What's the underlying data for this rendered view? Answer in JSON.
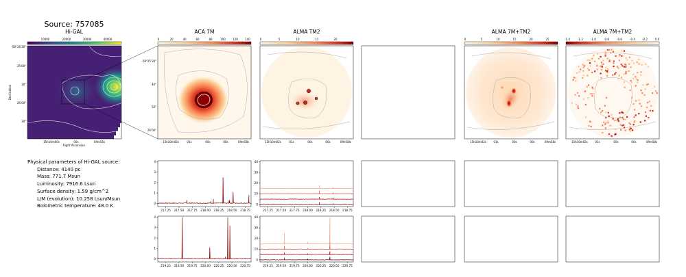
{
  "source_title": "Source: 757085",
  "panels": {
    "higal": {
      "title": "Hi-GAL",
      "colorbar_ticks": [
        "10000",
        "20000",
        "30000",
        "40000"
      ],
      "xlabel": "Right Ascension",
      "ylabel": "Declination",
      "yticks": [
        "-58°24'30\"",
        "25'00\"",
        "30\"",
        "26'00\"",
        "30\""
      ],
      "xticks": [
        "15h10m00s",
        "00s",
        "09m55s"
      ]
    },
    "aca7m": {
      "title": "ACA 7M",
      "colorbar_ticks": [
        "0",
        "20",
        "40",
        "60",
        "80",
        "100",
        "120",
        "140"
      ],
      "yticks": [
        "-58°25'30\"",
        "40\"",
        "50\"",
        "26'00\""
      ],
      "xticks": [
        "15h10m02s",
        "01s",
        "00s",
        "00s",
        "09m58s"
      ]
    },
    "almatm2": {
      "title": "ALMA TM2",
      "colorbar_ticks": [
        "0",
        "5",
        "10",
        "15",
        "20"
      ],
      "xticks": [
        "15h10m02s",
        "01s",
        "00s",
        "00s",
        "09m58s"
      ]
    },
    "alma7mtm2": {
      "title": "ALMA 7M+TM2",
      "colorbar_ticks": [
        "0",
        "5",
        "10",
        "15",
        "20",
        "25"
      ],
      "xticks": [
        "15h10m02s",
        "01s",
        "00s",
        "00s",
        "09m58s"
      ]
    },
    "alma7mtm2_neg": {
      "title": "ALMA 7M+TM2",
      "colorbar_ticks": [
        "-1.4",
        "-1.2",
        "-1.0",
        "-0.8",
        "-0.6",
        "-0.4",
        "-0.2",
        "0.0"
      ],
      "xticks": [
        "15h10m02s",
        "01s",
        "00s",
        "00s",
        "09m58s"
      ]
    }
  },
  "parameters": {
    "heading": "Physical parameters of Hi-GAL source:",
    "items": [
      "Distance: 4140 pc",
      "Mass: 771.7 Msun",
      "Luminosity: 7916.6 Lsun",
      "Surface density: 1.59 g/cm^2",
      "L/M (evolution): 10.258 Lsun/Msun",
      "Bolometric temperature: 48.0 K"
    ]
  },
  "chart_data": [
    {
      "type": "line",
      "panel": "ACA 7M spectrum, upper band",
      "x_ticks": [
        217.25,
        217.5,
        217.75,
        218.0,
        218.25,
        218.5,
        218.75
      ],
      "x_tick_labels": [
        "217.25",
        "217.50",
        "217.75",
        "218.00",
        "218.25",
        "218.50",
        "218.75"
      ],
      "xlim": [
        217.1,
        218.86
      ],
      "ylim": [
        -0.3,
        4.1
      ],
      "y_ticks": [
        0,
        1,
        2,
        3,
        4
      ],
      "series": [
        {
          "values": [
            0,
            0.05,
            0.1,
            0.05,
            0.3,
            0.05,
            0.1,
            0.05,
            0.2,
            0.1,
            0.4,
            0.1,
            0.05,
            2.5,
            0.3,
            1.1,
            0.1,
            0.05,
            0.8
          ],
          "x": [
            217.12,
            217.3,
            217.45,
            217.6,
            217.65,
            217.8,
            217.95,
            218.05,
            218.1,
            218.2,
            218.15,
            218.25,
            218.3,
            218.33,
            218.45,
            218.52,
            218.6,
            218.75,
            218.82
          ]
        }
      ]
    },
    {
      "type": "line",
      "panel": "ACA 7M spectrum, lower band",
      "x_ticks": [
        219.25,
        219.5,
        219.75,
        220.0,
        220.25,
        220.5,
        220.75
      ],
      "x_tick_labels": [
        "219.25",
        "219.50",
        "219.75",
        "220.00",
        "220.25",
        "220.50",
        "220.75"
      ],
      "xlim": [
        219.1,
        220.86
      ],
      "ylim": [
        -0.3,
        4.1
      ],
      "y_ticks": [
        0,
        1,
        2,
        3,
        4
      ],
      "series": [
        {
          "values": [
            0,
            0.1,
            4.0,
            0.1,
            0.05,
            1.1,
            0.1,
            0.05,
            0.2,
            4.0,
            3.2,
            0.1,
            0.05
          ],
          "x": [
            219.12,
            219.4,
            219.56,
            219.7,
            219.95,
            220.08,
            220.15,
            220.3,
            220.38,
            220.42,
            220.46,
            220.6,
            220.82
          ]
        }
      ]
    },
    {
      "type": "line",
      "panel": "ALMA TM2 spectra, upper band",
      "x_ticks": [
        217.25,
        217.5,
        217.75,
        218.0,
        218.25,
        218.5,
        218.75
      ],
      "x_tick_labels": [
        "217.25",
        "217.50",
        "217.75",
        "218.00",
        "218.25",
        "218.50",
        "218.75"
      ],
      "xlim": [
        217.1,
        218.86
      ],
      "ylim": [
        -2,
        41
      ],
      "y_ticks": [
        0,
        10,
        20,
        30,
        40
      ],
      "series": [
        {
          "baseline": 15,
          "peaks": [
            [
              218.22,
              18
            ],
            [
              218.48,
              16
            ]
          ]
        },
        {
          "baseline": 10,
          "peaks": [
            [
              218.22,
              13
            ],
            [
              218.48,
              11
            ]
          ]
        },
        {
          "baseline": 5,
          "peaks": [
            [
              218.22,
              7
            ],
            [
              218.48,
              6
            ]
          ]
        },
        {
          "baseline": 0,
          "peaks": [
            [
              218.22,
              2
            ],
            [
              218.48,
              1
            ]
          ]
        }
      ]
    },
    {
      "type": "line",
      "panel": "ALMA TM2 spectra, lower band",
      "x_ticks": [
        219.25,
        219.5,
        219.75,
        220.0,
        220.25,
        220.5,
        220.75
      ],
      "x_tick_labels": [
        "219.25",
        "219.50",
        "219.75",
        "220.00",
        "220.25",
        "220.50",
        "220.75"
      ],
      "xlim": [
        219.1,
        220.86
      ],
      "ylim": [
        -2,
        41
      ],
      "y_ticks": [
        0,
        10,
        20,
        30,
        40
      ],
      "series": [
        {
          "baseline": 15,
          "peaks": [
            [
              219.56,
              25
            ],
            [
              220.0,
              17
            ],
            [
              220.42,
              40
            ]
          ]
        },
        {
          "baseline": 10,
          "peaks": [
            [
              219.56,
              13
            ],
            [
              220.0,
              11
            ],
            [
              220.42,
              15
            ]
          ]
        },
        {
          "baseline": 5,
          "peaks": [
            [
              219.56,
              7
            ],
            [
              220.0,
              6
            ],
            [
              220.42,
              8
            ]
          ]
        },
        {
          "baseline": 0,
          "peaks": [
            [
              219.56,
              2
            ],
            [
              220.0,
              1
            ],
            [
              220.42,
              3
            ]
          ]
        }
      ]
    }
  ]
}
